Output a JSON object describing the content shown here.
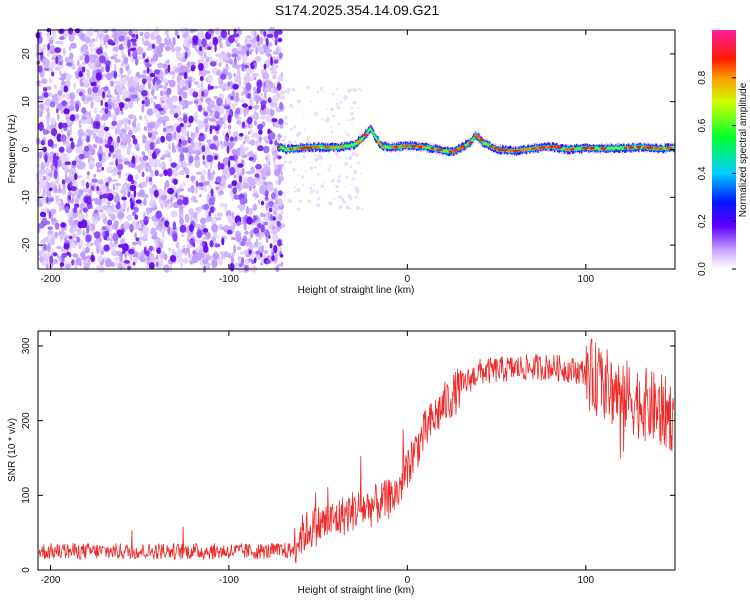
{
  "title": "S174.2025.354.14.09.G21",
  "colors": {
    "scatter": "#7b2cf0",
    "snr_line": "#ee2a2a",
    "axis": "#000000"
  },
  "chart_data": [
    {
      "type": "heatmap",
      "name": "spectrogram",
      "xlabel": "Height of straight line (km)",
      "ylabel": "Frequency (Hz)",
      "xlim": [
        -207,
        150
      ],
      "ylim": [
        -25,
        25
      ],
      "xticks": [
        -200,
        -100,
        0,
        100
      ],
      "yticks": [
        -20,
        -10,
        0,
        10,
        20
      ],
      "noise_region_x": [
        -207,
        -70
      ],
      "ridge": {
        "x": [
          -73,
          -68,
          -60,
          -50,
          -40,
          -30,
          -25,
          -21,
          -18,
          -15,
          -10,
          0,
          10,
          20,
          25,
          30,
          35,
          38,
          42,
          50,
          60,
          70,
          80,
          90,
          100,
          110,
          120,
          130,
          140,
          150
        ],
        "freq": [
          0.5,
          0,
          0.3,
          0.5,
          0.4,
          1.0,
          2.5,
          4.5,
          2.5,
          0.8,
          0.4,
          0.8,
          0.5,
          -0.3,
          -0.5,
          0.4,
          1.5,
          3.0,
          1.5,
          0,
          -0.3,
          0.2,
          0.6,
          0,
          0.3,
          0.2,
          0.3,
          0.5,
          0.2,
          0.4
        ]
      },
      "colorbar": {
        "label": "Normalized spectral amplitude",
        "range": [
          0,
          1
        ],
        "ticks": [
          "0.0",
          "0.2",
          "0.4",
          "0.6",
          "0.8"
        ]
      }
    },
    {
      "type": "line",
      "name": "snr",
      "xlabel": "Height of straight line (km)",
      "ylabel": "SNR (10 * v/v)",
      "xlim": [
        -207,
        150
      ],
      "ylim": [
        0,
        320
      ],
      "xticks": [
        -200,
        -100,
        0,
        100
      ],
      "yticks": [
        0,
        100,
        200,
        300
      ],
      "trend": {
        "x": [
          -207,
          -150,
          -100,
          -80,
          -65,
          -60,
          -55,
          -50,
          -40,
          -30,
          -20,
          -15,
          -10,
          -5,
          0,
          10,
          20,
          30,
          40,
          60,
          80,
          100,
          110,
          120,
          140,
          150
        ],
        "snr": [
          25,
          25,
          25,
          25,
          26,
          45,
          55,
          60,
          68,
          80,
          85,
          90,
          95,
          105,
          140,
          185,
          220,
          245,
          265,
          270,
          272,
          265,
          250,
          235,
          215,
          205
        ]
      }
    }
  ]
}
